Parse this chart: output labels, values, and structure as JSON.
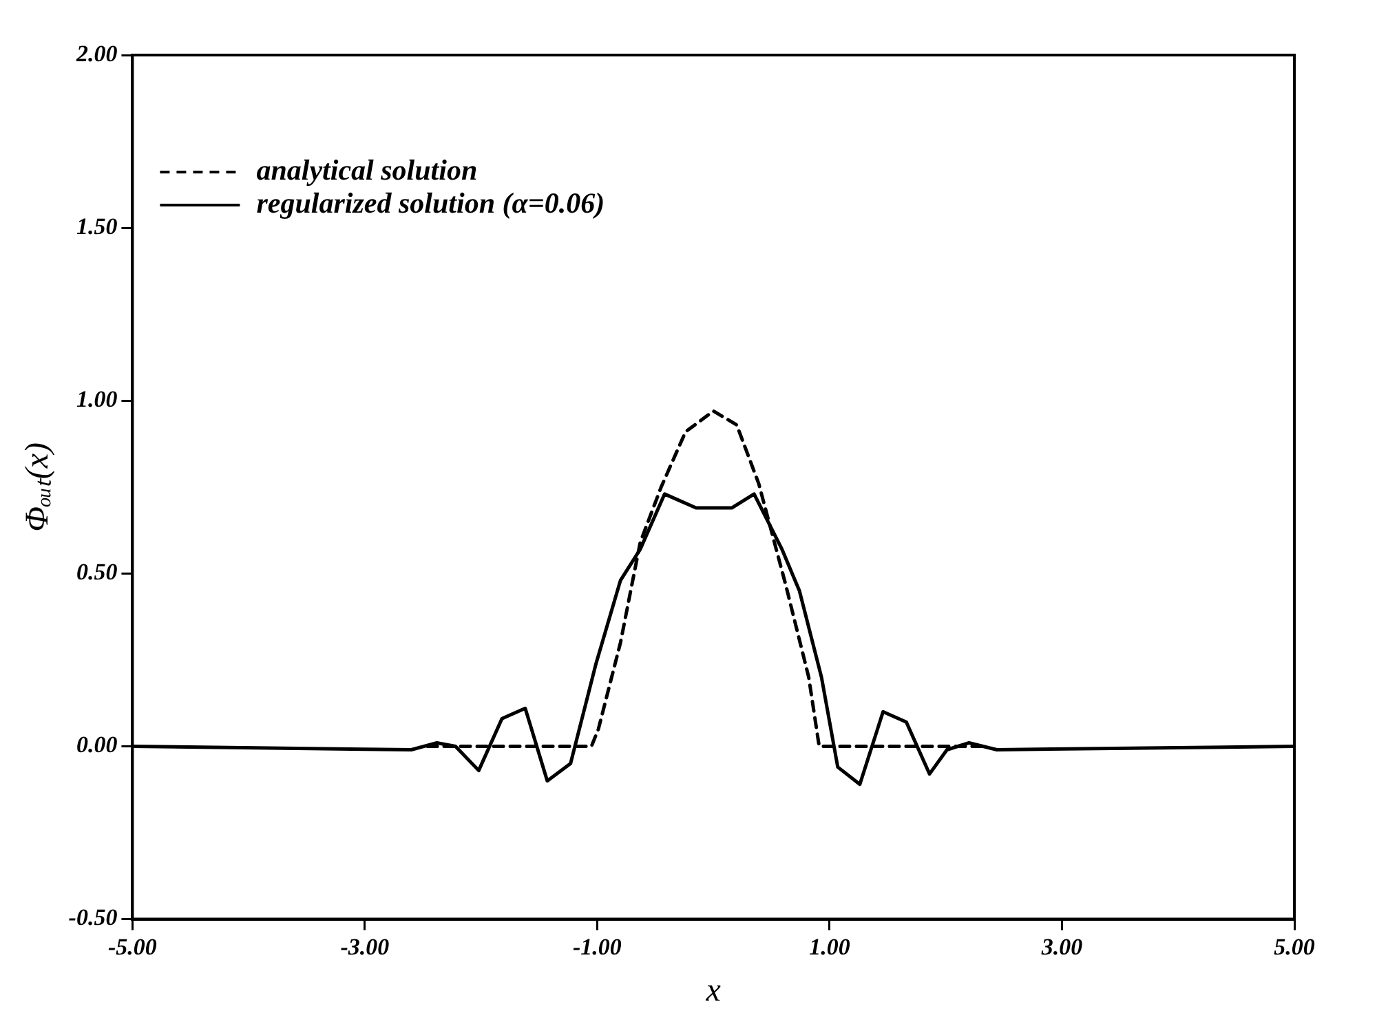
{
  "chart_data": {
    "type": "line",
    "xlabel": "x",
    "ylabel": "Φₒᵤₜ(x)",
    "xlim": [
      -5,
      5
    ],
    "ylim": [
      -0.5,
      2
    ],
    "xticks": [
      {
        "value": -5,
        "label": "-5.00"
      },
      {
        "value": -3,
        "label": "-3.00"
      },
      {
        "value": -1,
        "label": "-1.00"
      },
      {
        "value": 1,
        "label": "1.00"
      },
      {
        "value": 3,
        "label": "3.00"
      },
      {
        "value": 5,
        "label": "5.00"
      }
    ],
    "yticks": [
      {
        "value": -0.5,
        "label": "-0.50"
      },
      {
        "value": 0,
        "label": "0.00"
      },
      {
        "value": 0.5,
        "label": "0.50"
      },
      {
        "value": 1,
        "label": "1.00"
      },
      {
        "value": 1.5,
        "label": "1.50"
      },
      {
        "value": 2,
        "label": "2.00"
      }
    ],
    "grid": false,
    "legend": "top left",
    "marker": "none",
    "series": [
      {
        "name": "analytical solution",
        "color": "#000000",
        "line_style": "dashed",
        "x": [
          -2.46,
          -1.05,
          -0.99,
          -0.8,
          -0.63,
          -0.45,
          -0.24,
          0,
          0.2,
          0.39,
          0.62,
          0.82,
          0.91,
          2.32
        ],
        "values": [
          0,
          0,
          0.05,
          0.3,
          0.59,
          0.75,
          0.91,
          0.97,
          0.93,
          0.76,
          0.47,
          0.2,
          0,
          0
        ]
      },
      {
        "name": "regularized solution (α=0.06)",
        "color": "#000000",
        "line_style": "solid",
        "x": [
          -5,
          -2.6,
          -2.38,
          -2.22,
          -2.02,
          -1.82,
          -1.62,
          -1.43,
          -1.23,
          -1.01,
          -0.8,
          -0.63,
          -0.42,
          -0.15,
          0.16,
          0.35,
          0.59,
          0.74,
          0.93,
          1.07,
          1.26,
          1.46,
          1.66,
          1.86,
          2.01,
          2.2,
          2.44,
          5
        ],
        "values": [
          0,
          -0.01,
          0.01,
          0,
          -0.07,
          0.08,
          0.11,
          -0.1,
          -0.05,
          0.24,
          0.48,
          0.57,
          0.73,
          0.69,
          0.69,
          0.73,
          0.57,
          0.45,
          0.2,
          -0.06,
          -0.11,
          0.1,
          0.07,
          -0.08,
          -0.01,
          0.01,
          -0.01,
          0
        ]
      }
    ]
  }
}
